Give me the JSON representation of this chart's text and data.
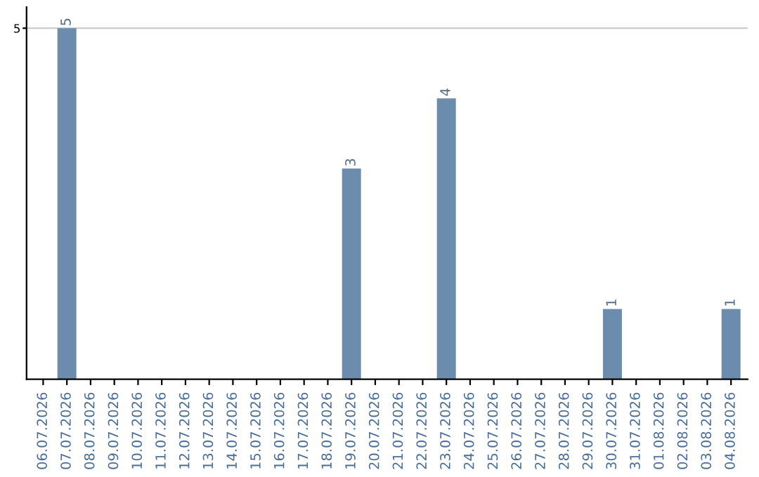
{
  "chart_data": {
    "type": "bar",
    "categories": [
      "06.07.2026",
      "07.07.2026",
      "08.07.2026",
      "09.07.2026",
      "10.07.2026",
      "11.07.2026",
      "12.07.2026",
      "13.07.2026",
      "14.07.2026",
      "15.07.2026",
      "16.07.2026",
      "17.07.2026",
      "18.07.2026",
      "19.07.2026",
      "20.07.2026",
      "21.07.2026",
      "22.07.2026",
      "23.07.2026",
      "24.07.2026",
      "25.07.2026",
      "26.07.2026",
      "27.07.2026",
      "28.07.2026",
      "29.07.2026",
      "30.07.2026",
      "31.07.2026",
      "01.08.2026",
      "02.08.2026",
      "03.08.2026",
      "04.08.2026"
    ],
    "values": [
      0,
      5,
      0,
      0,
      0,
      0,
      0,
      0,
      0,
      0,
      0,
      0,
      0,
      3,
      0,
      0,
      0,
      4,
      0,
      0,
      0,
      0,
      0,
      0,
      1,
      0,
      0,
      0,
      0,
      1
    ],
    "value_labels": [
      null,
      "5",
      null,
      null,
      null,
      null,
      null,
      null,
      null,
      null,
      null,
      null,
      null,
      "3",
      null,
      null,
      null,
      "4",
      null,
      null,
      null,
      null,
      null,
      null,
      "1",
      null,
      null,
      null,
      null,
      "1"
    ],
    "color": "#6b8cad",
    "ylim": [
      0,
      5.3
    ],
    "yticks": [
      5
    ],
    "grid": "y"
  }
}
